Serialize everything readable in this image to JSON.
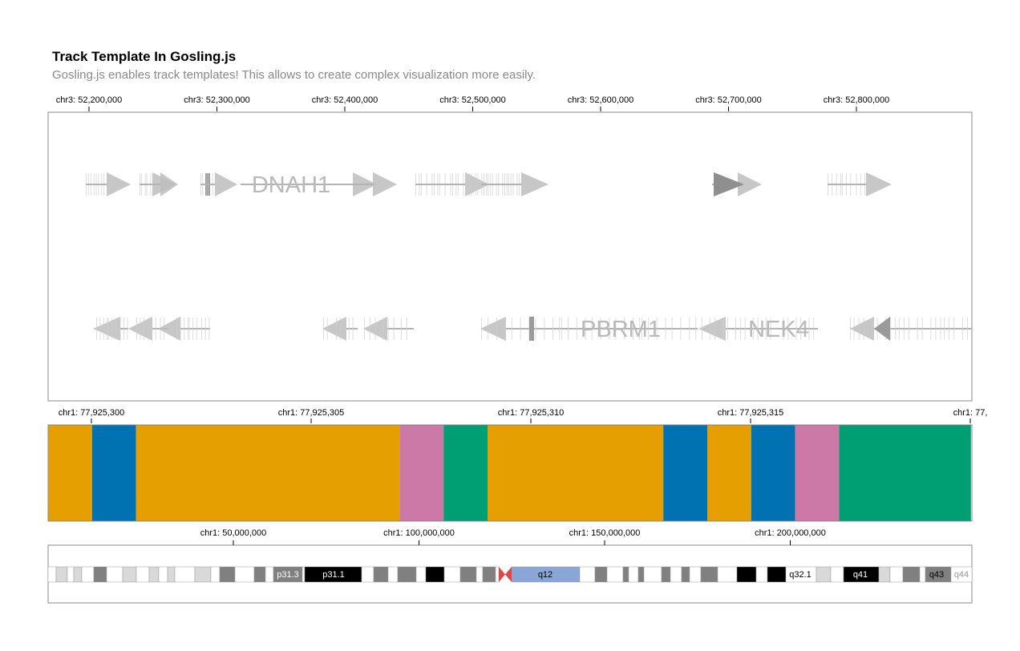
{
  "header": {
    "title": "Track Template In Gosling.js",
    "subtitle": "Gosling.js enables track templates! This allows to create complex visualization more easily."
  },
  "gene_track": {
    "axis_ticks": [
      "chr3: 52,200,000",
      "chr3: 52,300,000",
      "chr3: 52,400,000",
      "chr3: 52,500,000",
      "chr3: 52,600,000",
      "chr3: 52,700,000",
      "chr3: 52,800,000"
    ],
    "plus_strand_labels": [
      "DNAH1"
    ],
    "minus_strand_labels": [
      "PBRM1",
      "NEK4"
    ],
    "colors": {
      "arrow": "#bdbdbd",
      "line": "#b3b3b3",
      "dark": "#8f8f8f",
      "frame": "#888888"
    }
  },
  "sequence_track": {
    "axis_ticks": [
      "chr1: 77,925,300",
      "chr1: 77,925,305",
      "chr1: 77,925,310",
      "chr1: 77,925,315",
      "chr1: 77,"
    ],
    "colors": {
      "orange": "#E69F00",
      "blue": "#0072B2",
      "pink": "#CC79A7",
      "green": "#009E73"
    },
    "segments": [
      {
        "color": "orange",
        "span": 1
      },
      {
        "color": "blue",
        "span": 1
      },
      {
        "color": "orange",
        "span": 6
      },
      {
        "color": "pink",
        "span": 1
      },
      {
        "color": "green",
        "span": 1
      },
      {
        "color": "orange",
        "span": 4
      },
      {
        "color": "blue",
        "span": 1
      },
      {
        "color": "orange",
        "span": 1
      },
      {
        "color": "blue",
        "span": 1
      },
      {
        "color": "pink",
        "span": 1
      },
      {
        "color": "green",
        "span": 3
      }
    ]
  },
  "ideogram_track": {
    "axis_ticks": [
      "chr1: 50,000,000",
      "chr1: 100,000,000",
      "chr1: 150,000,000",
      "chr1: 200,000,000"
    ],
    "band_labels": [
      "p31.3",
      "p31.1",
      "q12",
      "q32.1",
      "q41",
      "q43",
      "q44"
    ],
    "colors": {
      "gpos25": "#d9d9d9",
      "gpos50": "#a6a6a6",
      "gpos75": "#808080",
      "gpos100": "#000000",
      "acen": "#e04848",
      "gvar": "#8aa6d6",
      "gneg": "#ffffff"
    }
  }
}
